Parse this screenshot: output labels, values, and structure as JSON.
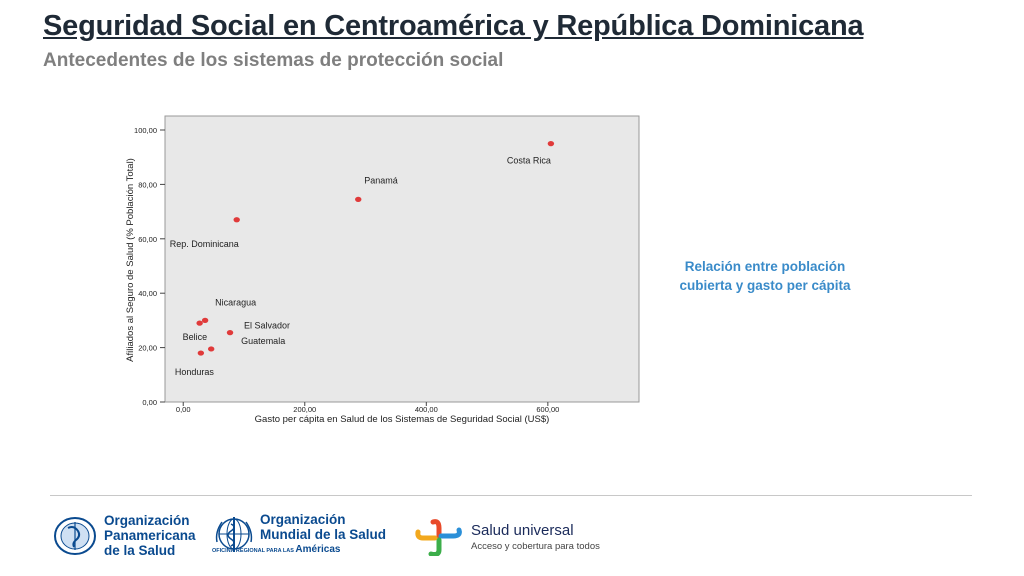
{
  "slide": {
    "title": "Seguridad Social en Centroamérica y República Dominicana",
    "subtitle": "Antecedentes de los sistemas de protección social"
  },
  "note": {
    "line1": "Relación entre población",
    "line2": "cubierta y gasto per cápita"
  },
  "chart_data": {
    "type": "scatter",
    "xlabel": "Gasto per cápita en Salud de los Sistemas de Seguridad Social (US$)",
    "ylabel": "Afiliados al Seguro de Salud (% Población Total)",
    "xlim": [
      -30,
      750
    ],
    "ylim": [
      0,
      100
    ],
    "xticks": [
      0,
      200,
      400,
      600
    ],
    "xtick_labels": [
      "0,00",
      "200,00",
      "400,00",
      "600,00"
    ],
    "yticks": [
      0,
      20,
      40,
      60,
      80,
      100
    ],
    "ytick_labels": [
      "0,00",
      "20,00",
      "40,00",
      "60,00",
      "80,00",
      "100,00"
    ],
    "grid": false,
    "background": "#e8e8e8",
    "point_color": "#e03a3a",
    "points": [
      {
        "label": "Costa Rica",
        "x": 605,
        "y": 95
      },
      {
        "label": "Panamá",
        "x": 288,
        "y": 74.5
      },
      {
        "label": "Rep. Dominicana",
        "x": 88,
        "y": 67
      },
      {
        "label": "Nicaragua",
        "x": 36,
        "y": 30
      },
      {
        "label": "El Salvador",
        "x": 77,
        "y": 25.5
      },
      {
        "label": "Belice",
        "x": 27,
        "y": 29
      },
      {
        "label": "Guatemala",
        "x": 46,
        "y": 19.5
      },
      {
        "label": "Honduras",
        "x": 29,
        "y": 18
      }
    ]
  },
  "logos": {
    "paho": {
      "line1": "Organización",
      "line2": "Panamericana",
      "line3": "de la Salud"
    },
    "who": {
      "line1": "Organización",
      "line2": "Mundial de la Salud",
      "sub_small": "OFICINA REGIONAL PARA LAS",
      "sub_big": "Américas"
    },
    "su": {
      "title": "Salud universal",
      "subtitle": "Acceso y cobertura para todos"
    }
  }
}
